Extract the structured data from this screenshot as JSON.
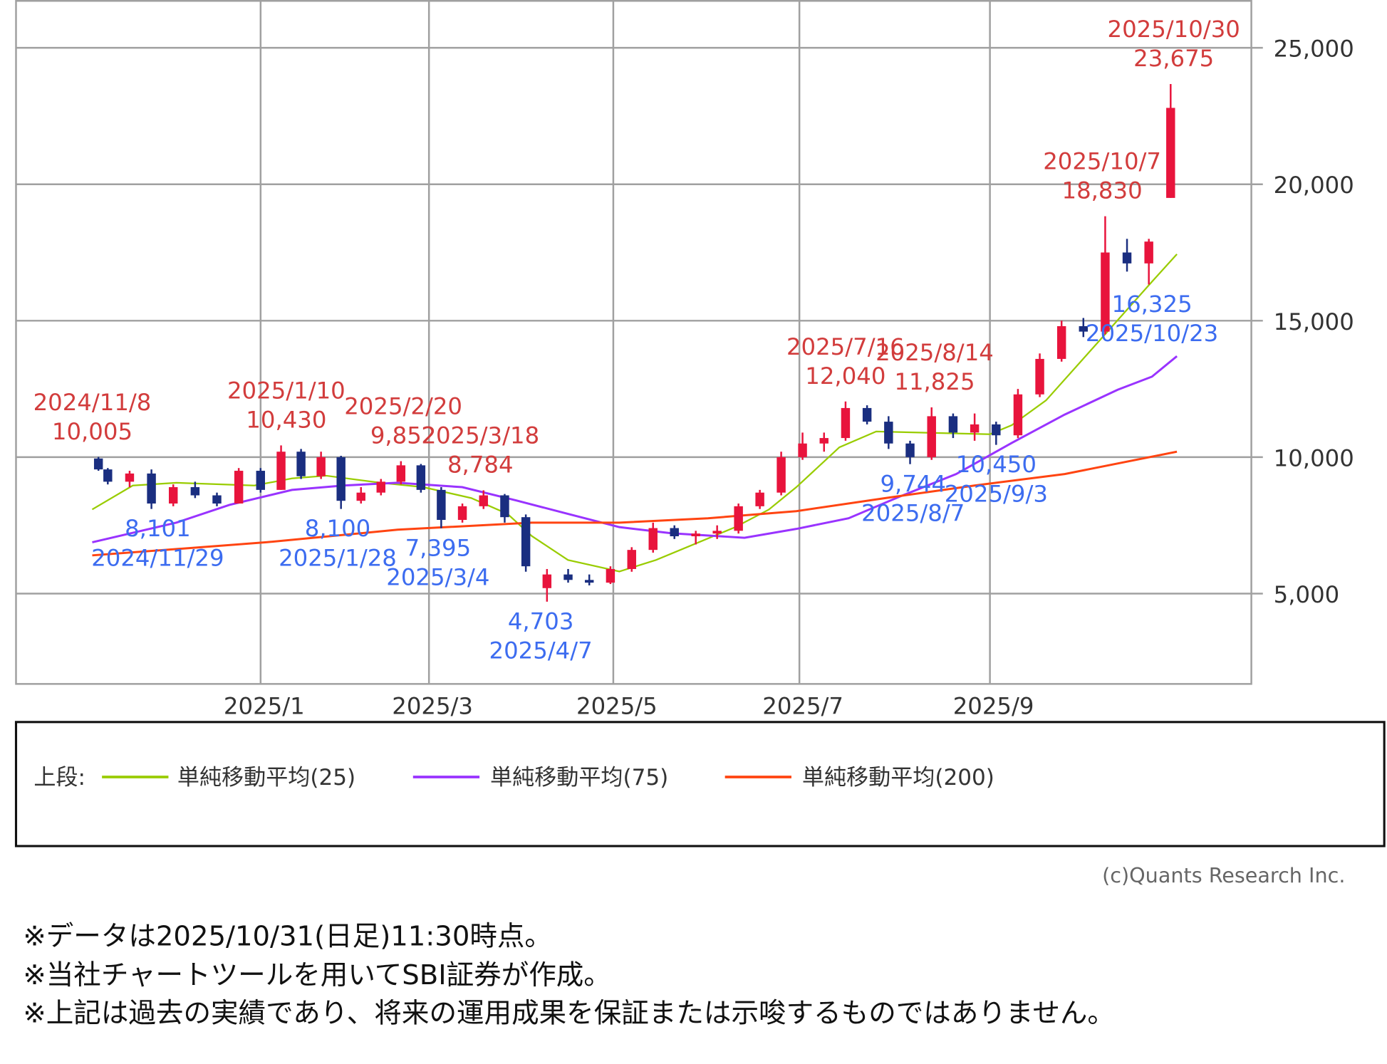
{
  "chart_data": {
    "type": "candlestick",
    "title": "",
    "xlabel": "",
    "ylabel": "",
    "ylim": [
      1700,
      26800
    ],
    "y_ticks": [
      5000,
      10000,
      15000,
      20000,
      25000
    ],
    "y_tick_labels": [
      "5,000",
      "10,000",
      "15,000",
      "20,000",
      "25,000"
    ],
    "x_ticks": [
      "2025-01-01",
      "2025-03-01",
      "2025-05-01",
      "2025-07-01",
      "2025-09-01"
    ],
    "x_tick_labels": [
      "2025/1",
      "2025/3",
      "2025/5",
      "2025/7",
      "2025/9"
    ],
    "grid": true,
    "up_color": "#e8143c",
    "down_color": "#1a2e80",
    "candles_weekly_ohlc": [
      [
        "2024-11-08",
        9950,
        10005,
        9500,
        9550
      ],
      [
        "2024-11-11",
        9550,
        9600,
        9000,
        9100
      ],
      [
        "2024-11-18",
        9100,
        9500,
        8900,
        9400
      ],
      [
        "2024-11-25",
        9400,
        9550,
        8101,
        8300
      ],
      [
        "2024-12-02",
        8300,
        9000,
        8200,
        8900
      ],
      [
        "2024-12-09",
        8900,
        9100,
        8500,
        8600
      ],
      [
        "2024-12-16",
        8600,
        8700,
        8200,
        8300
      ],
      [
        "2024-12-23",
        8300,
        9600,
        8300,
        9500
      ],
      [
        "2024-12-30",
        9500,
        9600,
        8700,
        8800
      ],
      [
        "2025-01-06",
        8800,
        10430,
        8800,
        10200
      ],
      [
        "2025-01-13",
        10200,
        10300,
        9200,
        9300
      ],
      [
        "2025-01-20",
        9300,
        10200,
        9200,
        10000
      ],
      [
        "2025-01-27",
        10000,
        10050,
        8100,
        8400
      ],
      [
        "2025-02-03",
        8400,
        8900,
        8300,
        8700
      ],
      [
        "2025-02-10",
        8700,
        9200,
        8600,
        9100
      ],
      [
        "2025-02-17",
        9100,
        9852,
        9000,
        9700
      ],
      [
        "2025-02-24",
        9700,
        9750,
        8700,
        8800
      ],
      [
        "2025-03-03",
        8800,
        8900,
        7395,
        7700
      ],
      [
        "2025-03-10",
        7700,
        8300,
        7600,
        8200
      ],
      [
        "2025-03-17",
        8200,
        8784,
        8100,
        8600
      ],
      [
        "2025-03-24",
        8600,
        8650,
        7600,
        7800
      ],
      [
        "2025-03-31",
        7800,
        7900,
        5800,
        6000
      ],
      [
        "2025-04-07",
        5200,
        5900,
        4703,
        5700
      ],
      [
        "2025-04-14",
        5700,
        5900,
        5400,
        5500
      ],
      [
        "2025-04-21",
        5500,
        5700,
        5300,
        5400
      ],
      [
        "2025-04-28",
        5400,
        6000,
        5350,
        5900
      ],
      [
        "2025-05-05",
        5900,
        6700,
        5800,
        6600
      ],
      [
        "2025-05-12",
        6600,
        7600,
        6500,
        7400
      ],
      [
        "2025-05-19",
        7400,
        7500,
        7000,
        7100
      ],
      [
        "2025-05-26",
        7100,
        7300,
        6800,
        7200
      ],
      [
        "2025-06-02",
        7200,
        7500,
        7000,
        7300
      ],
      [
        "2025-06-09",
        7300,
        8300,
        7200,
        8200
      ],
      [
        "2025-06-16",
        8200,
        8800,
        8100,
        8700
      ],
      [
        "2025-06-23",
        8700,
        10200,
        8600,
        10000
      ],
      [
        "2025-06-30",
        10000,
        10900,
        9900,
        10500
      ],
      [
        "2025-07-07",
        10500,
        10900,
        10200,
        10700
      ],
      [
        "2025-07-14",
        10700,
        12040,
        10600,
        11800
      ],
      [
        "2025-07-21",
        11800,
        11900,
        11200,
        11300
      ],
      [
        "2025-07-28",
        11300,
        11500,
        10300,
        10500
      ],
      [
        "2025-08-04",
        10500,
        10600,
        9744,
        10000
      ],
      [
        "2025-08-11",
        10000,
        11825,
        9900,
        11500
      ],
      [
        "2025-08-18",
        11500,
        11600,
        10700,
        10900
      ],
      [
        "2025-08-25",
        10900,
        11600,
        10600,
        11200
      ],
      [
        "2025-09-01",
        11200,
        11300,
        10450,
        10800
      ],
      [
        "2025-09-08",
        10800,
        12500,
        10700,
        12300
      ],
      [
        "2025-09-15",
        12300,
        13800,
        12200,
        13600
      ],
      [
        "2025-09-22",
        13600,
        15000,
        13500,
        14800
      ],
      [
        "2025-09-29",
        14800,
        15100,
        14400,
        14600
      ],
      [
        "2025-10-06",
        14600,
        18830,
        14500,
        17500
      ],
      [
        "2025-10-13",
        17500,
        18000,
        16800,
        17100
      ],
      [
        "2025-10-20",
        17100,
        18000,
        16325,
        17900
      ],
      [
        "2025-10-27",
        19500,
        23675,
        19500,
        22800
      ]
    ],
    "series": [
      {
        "name": "単純移動平均(25)",
        "color": "#99cc00",
        "points": [
          [
            "2024-11-08",
            8084
          ],
          [
            "2024-11-21",
            8960
          ],
          [
            "2024-12-05",
            9060
          ],
          [
            "2024-12-30",
            8960
          ],
          [
            "2025-01-12",
            9220
          ],
          [
            "2025-01-24",
            9320
          ],
          [
            "2025-02-12",
            9060
          ],
          [
            "2025-02-27",
            8900
          ],
          [
            "2025-03-15",
            8500
          ],
          [
            "2025-03-27",
            7920
          ],
          [
            "2025-04-04",
            7110
          ],
          [
            "2025-04-16",
            6230
          ],
          [
            "2025-05-03",
            5810
          ],
          [
            "2025-05-15",
            6230
          ],
          [
            "2025-05-29",
            6880
          ],
          [
            "2025-06-10",
            7435
          ],
          [
            "2025-06-21",
            8080
          ],
          [
            "2025-06-30",
            8900
          ],
          [
            "2025-07-14",
            10360
          ],
          [
            "2025-07-26",
            10940
          ],
          [
            "2025-09-01",
            10840
          ],
          [
            "2025-09-08",
            11170
          ],
          [
            "2025-09-19",
            12080
          ],
          [
            "2025-10-06",
            14250
          ],
          [
            "2025-10-23",
            16430
          ],
          [
            "2025-10-31",
            17440
          ]
        ]
      },
      {
        "name": "単純移動平均(75)",
        "color": "#9933ff",
        "points": [
          [
            "2024-11-08",
            6880
          ],
          [
            "2024-12-05",
            7600
          ],
          [
            "2024-12-22",
            8250
          ],
          [
            "2025-01-12",
            8800
          ],
          [
            "2025-01-30",
            8960
          ],
          [
            "2025-02-18",
            9060
          ],
          [
            "2025-03-12",
            8900
          ],
          [
            "2025-03-30",
            8410
          ],
          [
            "2025-04-16",
            7920
          ],
          [
            "2025-05-03",
            7435
          ],
          [
            "2025-05-20",
            7210
          ],
          [
            "2025-06-13",
            7045
          ],
          [
            "2025-06-30",
            7370
          ],
          [
            "2025-07-17",
            7760
          ],
          [
            "2025-08-03",
            8570
          ],
          [
            "2025-08-21",
            9380
          ],
          [
            "2025-09-08",
            10520
          ],
          [
            "2025-09-25",
            11560
          ],
          [
            "2025-10-12",
            12470
          ],
          [
            "2025-10-23",
            12950
          ],
          [
            "2025-10-31",
            13700
          ]
        ]
      },
      {
        "name": "単純移動平均(200)",
        "color": "#ff4411",
        "points": [
          [
            "2024-11-08",
            6400
          ],
          [
            "2025-01-03",
            6880
          ],
          [
            "2025-02-18",
            7340
          ],
          [
            "2025-04-04",
            7600
          ],
          [
            "2025-05-03",
            7600
          ],
          [
            "2025-06-01",
            7760
          ],
          [
            "2025-06-30",
            8020
          ],
          [
            "2025-07-29",
            8500
          ],
          [
            "2025-08-27",
            8960
          ],
          [
            "2025-09-25",
            9380
          ],
          [
            "2025-10-31",
            10200
          ]
        ]
      }
    ],
    "annotations": [
      {
        "type": "high",
        "date": "2024-11-08",
        "value": 10005,
        "date_label": "2024/11/8",
        "value_label": "10,005"
      },
      {
        "type": "low",
        "date": "2024-11-29",
        "value": 8101,
        "date_label": "2024/11/29",
        "value_label": "8,101"
      },
      {
        "type": "high",
        "date": "2025-01-10",
        "value": 10430,
        "date_label": "2025/1/10",
        "value_label": "10,430"
      },
      {
        "type": "low",
        "date": "2025-01-28",
        "value": 8100,
        "date_label": "2025/1/28",
        "value_label": "8,100"
      },
      {
        "type": "high",
        "date": "2025-02-20",
        "value": 9852,
        "date_label": "2025/2/20",
        "value_label": "9,852"
      },
      {
        "type": "low",
        "date": "2025-03-04",
        "value": 7395,
        "date_label": "2025/3/4",
        "value_label": "7,395"
      },
      {
        "type": "high",
        "date": "2025-03-18",
        "value": 8784,
        "date_label": "2025/3/18",
        "value_label": "8,784"
      },
      {
        "type": "low",
        "date": "2025-04-07",
        "value": 4703,
        "date_label": "2025/4/7",
        "value_label": "4,703"
      },
      {
        "type": "high",
        "date": "2025-07-16",
        "value": 12040,
        "date_label": "2025/7/16",
        "value_label": "12,040"
      },
      {
        "type": "low",
        "date": "2025-08-07",
        "value": 9744,
        "date_label": "2025/8/7",
        "value_label": "9,744"
      },
      {
        "type": "high",
        "date": "2025-08-14",
        "value": 11825,
        "date_label": "2025/8/14",
        "value_label": "11,825"
      },
      {
        "type": "low",
        "date": "2025-09-03",
        "value": 10450,
        "date_label": "2025/9/3",
        "value_label": "10,450"
      },
      {
        "type": "high",
        "date": "2025-10-07",
        "value": 18830,
        "date_label": "2025/10/7",
        "value_label": "18,830"
      },
      {
        "type": "low",
        "date": "2025-10-23",
        "value": 16325,
        "date_label": "2025/10/23",
        "value_label": "16,325"
      },
      {
        "type": "high",
        "date": "2025-10-30",
        "value": 23675,
        "date_label": "2025/10/30",
        "value_label": "23,675"
      }
    ],
    "legend": {
      "prefix": "上段:",
      "placement": "bottom"
    }
  },
  "copyright": "(c)Quants Research Inc.",
  "notes": [
    "※データは2025/10/31(日足)11:30時点。",
    "※当社チャートツールを用いてSBI証券が作成。",
    "※上記は過去の実績であり、将来の運用成果を保証または示唆するものではありません。"
  ]
}
